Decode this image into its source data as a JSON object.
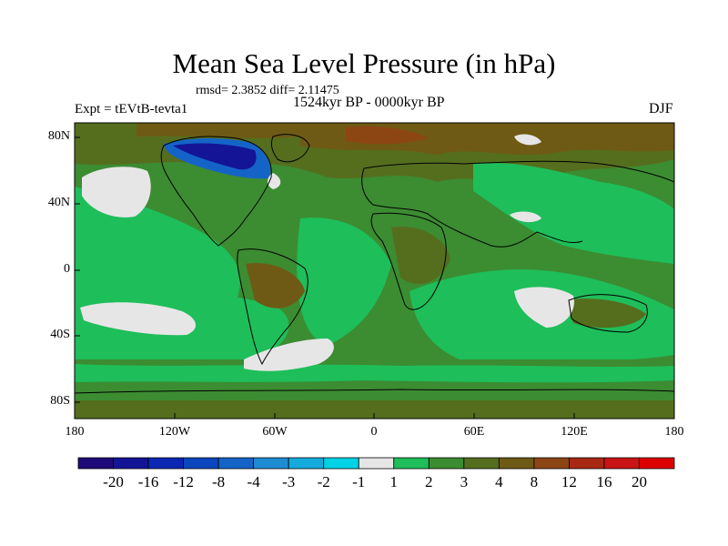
{
  "title": "Mean Sea Level Pressure (in hPa)",
  "stats": "rmsd= 2.3852 diff= 2.11475",
  "experiment": "Expt = tEVtB-tevta1",
  "period": "1524kyr BP - 0000kyr BP",
  "season": "DJF",
  "map": {
    "y_ticks": [
      "80N",
      "40N",
      "0",
      "40S",
      "80S"
    ],
    "x_ticks": [
      "180",
      "120W",
      "60W",
      "0",
      "60E",
      "120E",
      "180"
    ],
    "lon_range": [
      -180,
      180
    ],
    "lat_range": [
      -90,
      90
    ]
  },
  "colorbar": {
    "labels": [
      "-20",
      "-16",
      "-12",
      "-8",
      "-4",
      "-3",
      "-2",
      "-1",
      "1",
      "2",
      "3",
      "4",
      "8",
      "12",
      "16",
      "20"
    ],
    "colors": [
      "#1e0a78",
      "#141496",
      "#0a28b4",
      "#0a46be",
      "#1464c8",
      "#1e8cd2",
      "#14aadc",
      "#00d2e6",
      "#e6e6e6",
      "#1ebe5a",
      "#3c8c32",
      "#556e1e",
      "#6e5a14",
      "#8c4614",
      "#a82814",
      "#c81414",
      "#dc0000"
    ]
  },
  "palette": {
    "green": "#1ebe5a",
    "olive": "#3c8c32",
    "dark_olive": "#556e1e",
    "brown": "#6e5a14",
    "light_grey": "#e6e6e6",
    "blue": "#0a46be",
    "dark_blue": "#141496"
  }
}
